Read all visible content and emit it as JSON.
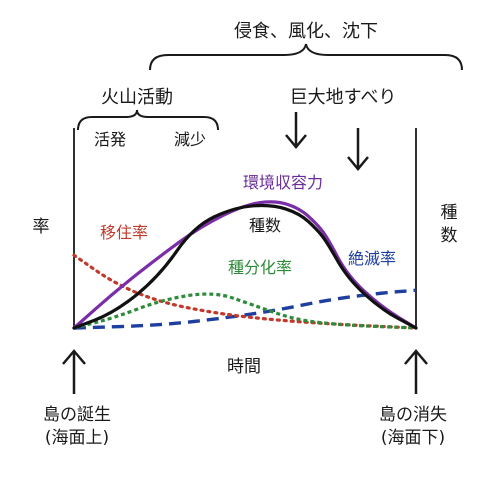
{
  "top_label": "侵食、風化、沈下",
  "volcano": {
    "label": "火山活動",
    "active": "活発",
    "decline": "減少"
  },
  "landslide": "巨大地すべり",
  "y_left": "率",
  "y_right": "種数",
  "x_label": "時間",
  "island_birth": {
    "line1": "島の誕生",
    "line2": "(海面上)"
  },
  "island_loss": {
    "line1": "島の消失",
    "line2": "(海面下)"
  },
  "chart_data": {
    "type": "line",
    "x_range": [
      "島の誕生",
      "島の消失"
    ],
    "series": [
      {
        "name": "環境収容力",
        "color": "#7b2ea8",
        "style": "solid",
        "values": [
          [
            0.0,
            0.0
          ],
          [
            0.12,
            0.28
          ],
          [
            0.25,
            0.55
          ],
          [
            0.37,
            0.78
          ],
          [
            0.5,
            0.95
          ],
          [
            0.59,
            0.98
          ],
          [
            0.66,
            0.92
          ],
          [
            0.71,
            0.8
          ],
          [
            0.74,
            0.7
          ],
          [
            0.8,
            0.4
          ],
          [
            0.9,
            0.16
          ],
          [
            1.0,
            0.0
          ]
        ]
      },
      {
        "name": "種数",
        "color": "#111111",
        "style": "solid",
        "values": [
          [
            0.0,
            0.0
          ],
          [
            0.12,
            0.12
          ],
          [
            0.25,
            0.4
          ],
          [
            0.35,
            0.78
          ],
          [
            0.47,
            0.93
          ],
          [
            0.58,
            0.95
          ],
          [
            0.66,
            0.88
          ],
          [
            0.71,
            0.76
          ],
          [
            0.74,
            0.66
          ],
          [
            0.8,
            0.38
          ],
          [
            0.9,
            0.14
          ],
          [
            1.0,
            0.0
          ]
        ]
      },
      {
        "name": "移住率",
        "color": "#c0392b",
        "style": "dotted",
        "values": [
          [
            0.0,
            0.56
          ],
          [
            0.12,
            0.34
          ],
          [
            0.25,
            0.2
          ],
          [
            0.4,
            0.12
          ],
          [
            0.55,
            0.07
          ],
          [
            0.75,
            0.03
          ],
          [
            1.0,
            0.0
          ]
        ]
      },
      {
        "name": "種分化率",
        "color": "#2e8b3a",
        "style": "dashed-fine",
        "values": [
          [
            0.0,
            0.0
          ],
          [
            0.12,
            0.08
          ],
          [
            0.26,
            0.22
          ],
          [
            0.41,
            0.28
          ],
          [
            0.52,
            0.18
          ],
          [
            0.65,
            0.06
          ],
          [
            0.8,
            0.02
          ],
          [
            1.0,
            0.0
          ]
        ]
      },
      {
        "name": "絶滅率",
        "color": "#1f3fa0",
        "style": "dashed",
        "values": [
          [
            0.0,
            0.0
          ],
          [
            0.25,
            0.02
          ],
          [
            0.45,
            0.08
          ],
          [
            0.6,
            0.14
          ],
          [
            0.75,
            0.22
          ],
          [
            0.9,
            0.27
          ],
          [
            1.0,
            0.29
          ]
        ]
      }
    ]
  }
}
